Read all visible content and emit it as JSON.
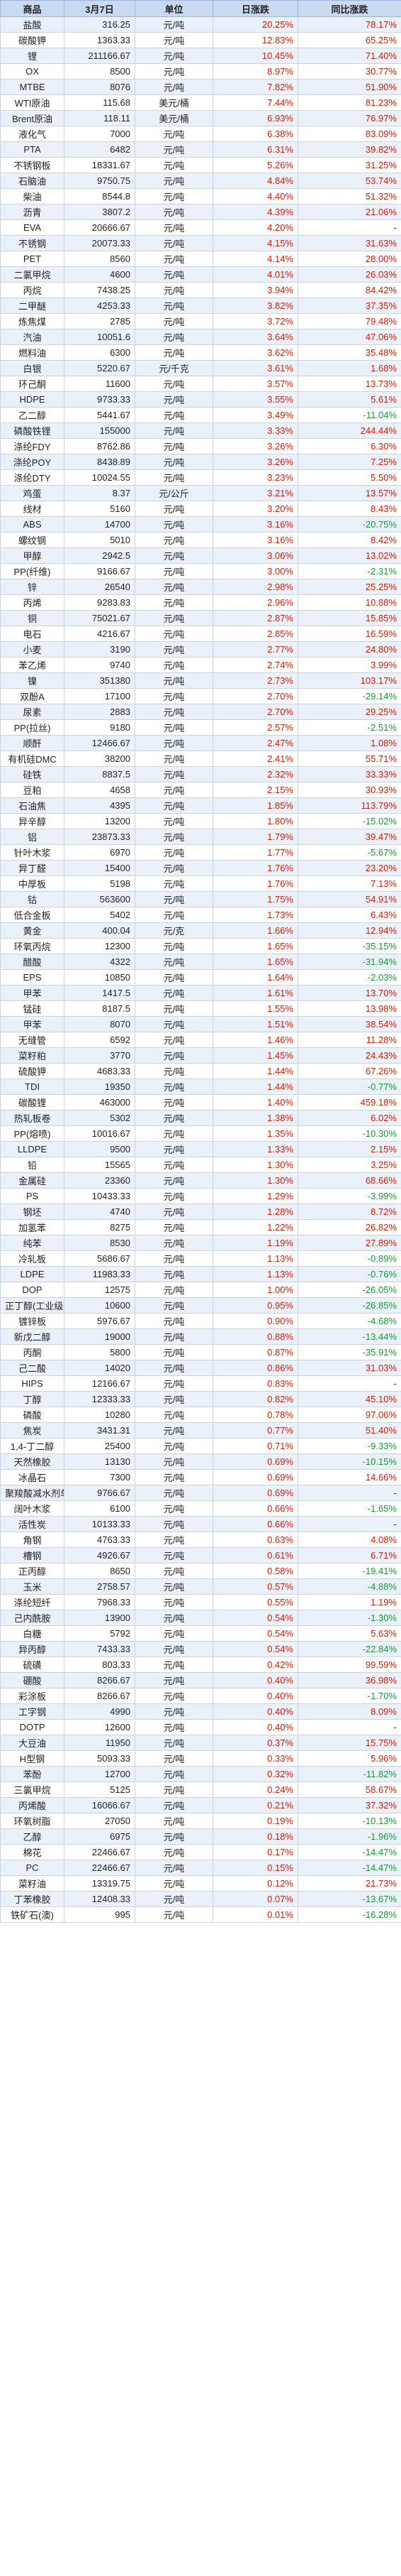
{
  "colors": {
    "header_bg": "#c9d9f0",
    "up": "#d81e06",
    "down": "#1a9a32"
  },
  "header": {
    "name": "商品",
    "price": "3月7日",
    "unit": "单位",
    "daily": "日涨跌",
    "yoy": "同比涨跌"
  },
  "rows": [
    {
      "name": "盐酸",
      "price": "316.25",
      "unit": "元/吨",
      "daily": "20.25%",
      "yoy": "78.17%"
    },
    {
      "name": "碳酸钾",
      "price": "1363.33",
      "unit": "元/吨",
      "daily": "12.83%",
      "yoy": "65.25%"
    },
    {
      "name": "锂",
      "price": "211166.67",
      "unit": "元/吨",
      "daily": "10.45%",
      "yoy": "71.40%"
    },
    {
      "name": "OX",
      "price": "8500",
      "unit": "元/吨",
      "daily": "8.97%",
      "yoy": "30.77%"
    },
    {
      "name": "MTBE",
      "price": "8076",
      "unit": "元/吨",
      "daily": "7.82%",
      "yoy": "51.90%"
    },
    {
      "name": "WTI原油",
      "price": "115.68",
      "unit": "美元/桶",
      "daily": "7.44%",
      "yoy": "81.23%"
    },
    {
      "name": "Brent原油",
      "price": "118.11",
      "unit": "美元/桶",
      "daily": "6.93%",
      "yoy": "76.97%"
    },
    {
      "name": "液化气",
      "price": "7000",
      "unit": "元/吨",
      "daily": "6.38%",
      "yoy": "83.09%"
    },
    {
      "name": "PTA",
      "price": "6482",
      "unit": "元/吨",
      "daily": "6.31%",
      "yoy": "39.82%"
    },
    {
      "name": "不锈钢板",
      "price": "18331.67",
      "unit": "元/吨",
      "daily": "5.26%",
      "yoy": "31.25%"
    },
    {
      "name": "石脑油",
      "price": "9750.75",
      "unit": "元/吨",
      "daily": "4.84%",
      "yoy": "53.74%"
    },
    {
      "name": "柴油",
      "price": "8544.8",
      "unit": "元/吨",
      "daily": "4.40%",
      "yoy": "51.32%"
    },
    {
      "name": "沥青",
      "price": "3807.2",
      "unit": "元/吨",
      "daily": "4.39%",
      "yoy": "21.06%"
    },
    {
      "name": "EVA",
      "price": "20666.67",
      "unit": "元/吨",
      "daily": "4.20%",
      "yoy": "-"
    },
    {
      "name": "不锈钢",
      "price": "20073.33",
      "unit": "元/吨",
      "daily": "4.15%",
      "yoy": "31.63%"
    },
    {
      "name": "PET",
      "price": "8560",
      "unit": "元/吨",
      "daily": "4.14%",
      "yoy": "28.00%"
    },
    {
      "name": "二氯甲烷",
      "price": "4600",
      "unit": "元/吨",
      "daily": "4.01%",
      "yoy": "26.03%"
    },
    {
      "name": "丙烷",
      "price": "7438.25",
      "unit": "元/吨",
      "daily": "3.94%",
      "yoy": "84.42%"
    },
    {
      "name": "二甲醚",
      "price": "4253.33",
      "unit": "元/吨",
      "daily": "3.82%",
      "yoy": "37.35%"
    },
    {
      "name": "炼焦煤",
      "price": "2785",
      "unit": "元/吨",
      "daily": "3.72%",
      "yoy": "79.48%"
    },
    {
      "name": "汽油",
      "price": "10051.6",
      "unit": "元/吨",
      "daily": "3.64%",
      "yoy": "47.06%"
    },
    {
      "name": "燃料油",
      "price": "6300",
      "unit": "元/吨",
      "daily": "3.62%",
      "yoy": "35.48%"
    },
    {
      "name": "白银",
      "price": "5220.67",
      "unit": "元/千克",
      "daily": "3.61%",
      "yoy": "1.68%"
    },
    {
      "name": "环己酮",
      "price": "11600",
      "unit": "元/吨",
      "daily": "3.57%",
      "yoy": "13.73%"
    },
    {
      "name": "HDPE",
      "price": "9733.33",
      "unit": "元/吨",
      "daily": "3.55%",
      "yoy": "5.61%"
    },
    {
      "name": "乙二醇",
      "price": "5441.67",
      "unit": "元/吨",
      "daily": "3.49%",
      "yoy": "-11.04%"
    },
    {
      "name": "磷酸铁锂",
      "price": "155000",
      "unit": "元/吨",
      "daily": "3.33%",
      "yoy": "244.44%"
    },
    {
      "name": "涤纶FDY",
      "price": "8762.86",
      "unit": "元/吨",
      "daily": "3.26%",
      "yoy": "6.30%"
    },
    {
      "name": "涤纶POY",
      "price": "8438.89",
      "unit": "元/吨",
      "daily": "3.26%",
      "yoy": "7.25%"
    },
    {
      "name": "涤纶DTY",
      "price": "10024.55",
      "unit": "元/吨",
      "daily": "3.23%",
      "yoy": "5.50%"
    },
    {
      "name": "鸡蛋",
      "price": "8.37",
      "unit": "元/公斤",
      "daily": "3.21%",
      "yoy": "13.57%"
    },
    {
      "name": "线材",
      "price": "5160",
      "unit": "元/吨",
      "daily": "3.20%",
      "yoy": "8.43%"
    },
    {
      "name": "ABS",
      "price": "14700",
      "unit": "元/吨",
      "daily": "3.16%",
      "yoy": "-20.75%"
    },
    {
      "name": "螺纹钢",
      "price": "5010",
      "unit": "元/吨",
      "daily": "3.16%",
      "yoy": "8.42%"
    },
    {
      "name": "甲醇",
      "price": "2942.5",
      "unit": "元/吨",
      "daily": "3.06%",
      "yoy": "13.02%"
    },
    {
      "name": "PP(纤维)",
      "price": "9166.67",
      "unit": "元/吨",
      "daily": "3.00%",
      "yoy": "-2.31%"
    },
    {
      "name": "锌",
      "price": "26540",
      "unit": "元/吨",
      "daily": "2.98%",
      "yoy": "25.25%"
    },
    {
      "name": "丙烯",
      "price": "9283.83",
      "unit": "元/吨",
      "daily": "2.96%",
      "yoy": "10.88%"
    },
    {
      "name": "铜",
      "price": "75021.67",
      "unit": "元/吨",
      "daily": "2.87%",
      "yoy": "15.85%"
    },
    {
      "name": "电石",
      "price": "4216.67",
      "unit": "元/吨",
      "daily": "2.85%",
      "yoy": "16.59%"
    },
    {
      "name": "小麦",
      "price": "3190",
      "unit": "元/吨",
      "daily": "2.77%",
      "yoy": "24.80%"
    },
    {
      "name": "苯乙烯",
      "price": "9740",
      "unit": "元/吨",
      "daily": "2.74%",
      "yoy": "3.99%"
    },
    {
      "name": "镍",
      "price": "351380",
      "unit": "元/吨",
      "daily": "2.73%",
      "yoy": "103.17%"
    },
    {
      "name": "双酚A",
      "price": "17100",
      "unit": "元/吨",
      "daily": "2.70%",
      "yoy": "-29.14%"
    },
    {
      "name": "尿素",
      "price": "2883",
      "unit": "元/吨",
      "daily": "2.70%",
      "yoy": "29.25%"
    },
    {
      "name": "PP(拉丝)",
      "price": "9180",
      "unit": "元/吨",
      "daily": "2.57%",
      "yoy": "-2.51%"
    },
    {
      "name": "顺酐",
      "price": "12466.67",
      "unit": "元/吨",
      "daily": "2.47%",
      "yoy": "1.08%"
    },
    {
      "name": "有机硅DMC",
      "price": "38200",
      "unit": "元/吨",
      "daily": "2.41%",
      "yoy": "55.71%"
    },
    {
      "name": "硅铁",
      "price": "8837.5",
      "unit": "元/吨",
      "daily": "2.32%",
      "yoy": "33.33%"
    },
    {
      "name": "豆粕",
      "price": "4658",
      "unit": "元/吨",
      "daily": "2.15%",
      "yoy": "30.93%"
    },
    {
      "name": "石油焦",
      "price": "4395",
      "unit": "元/吨",
      "daily": "1.85%",
      "yoy": "113.79%"
    },
    {
      "name": "异辛醇",
      "price": "13200",
      "unit": "元/吨",
      "daily": "1.80%",
      "yoy": "-15.02%"
    },
    {
      "name": "铝",
      "price": "23873.33",
      "unit": "元/吨",
      "daily": "1.79%",
      "yoy": "39.47%"
    },
    {
      "name": "针叶木浆",
      "price": "6970",
      "unit": "元/吨",
      "daily": "1.77%",
      "yoy": "-5.67%"
    },
    {
      "name": "异丁醛",
      "price": "15400",
      "unit": "元/吨",
      "daily": "1.76%",
      "yoy": "23.20%"
    },
    {
      "name": "中厚板",
      "price": "5198",
      "unit": "元/吨",
      "daily": "1.76%",
      "yoy": "7.13%"
    },
    {
      "name": "钴",
      "price": "563600",
      "unit": "元/吨",
      "daily": "1.75%",
      "yoy": "54.91%"
    },
    {
      "name": "低合金板",
      "price": "5402",
      "unit": "元/吨",
      "daily": "1.73%",
      "yoy": "6.43%"
    },
    {
      "name": "黄金",
      "price": "400.04",
      "unit": "元/克",
      "daily": "1.66%",
      "yoy": "12.94%"
    },
    {
      "name": "环氧丙烷",
      "price": "12300",
      "unit": "元/吨",
      "daily": "1.65%",
      "yoy": "-35.15%"
    },
    {
      "name": "醋酸",
      "price": "4322",
      "unit": "元/吨",
      "daily": "1.65%",
      "yoy": "-31.94%"
    },
    {
      "name": "EPS",
      "price": "10850",
      "unit": "元/吨",
      "daily": "1.64%",
      "yoy": "-2.03%"
    },
    {
      "name": "甲苯",
      "price": "1417.5",
      "unit": "元/吨",
      "daily": "1.61%",
      "yoy": "13.70%"
    },
    {
      "name": "锰硅",
      "price": "8187.5",
      "unit": "元/吨",
      "daily": "1.55%",
      "yoy": "13.98%"
    },
    {
      "name": "甲苯",
      "price": "8070",
      "unit": "元/吨",
      "daily": "1.51%",
      "yoy": "38.54%"
    },
    {
      "name": "无缝管",
      "price": "6592",
      "unit": "元/吨",
      "daily": "1.46%",
      "yoy": "11.28%"
    },
    {
      "name": "菜籽粕",
      "price": "3770",
      "unit": "元/吨",
      "daily": "1.45%",
      "yoy": "24.43%"
    },
    {
      "name": "硫酸钾",
      "price": "4683.33",
      "unit": "元/吨",
      "daily": "1.44%",
      "yoy": "67.26%"
    },
    {
      "name": "TDI",
      "price": "19350",
      "unit": "元/吨",
      "daily": "1.44%",
      "yoy": "-0.77%"
    },
    {
      "name": "碳酸锂",
      "price": "463000",
      "unit": "元/吨",
      "daily": "1.40%",
      "yoy": "459.18%"
    },
    {
      "name": "热轧板卷",
      "price": "5302",
      "unit": "元/吨",
      "daily": "1.38%",
      "yoy": "6.02%"
    },
    {
      "name": "PP(熔喷)",
      "price": "10016.67",
      "unit": "元/吨",
      "daily": "1.35%",
      "yoy": "-10.30%"
    },
    {
      "name": "LLDPE",
      "price": "9500",
      "unit": "元/吨",
      "daily": "1.33%",
      "yoy": "2.15%"
    },
    {
      "name": "铅",
      "price": "15565",
      "unit": "元/吨",
      "daily": "1.30%",
      "yoy": "3.25%"
    },
    {
      "name": "金属硅",
      "price": "23360",
      "unit": "元/吨",
      "daily": "1.30%",
      "yoy": "68.66%"
    },
    {
      "name": "PS",
      "price": "10433.33",
      "unit": "元/吨",
      "daily": "1.29%",
      "yoy": "-3.99%"
    },
    {
      "name": "钢坯",
      "price": "4740",
      "unit": "元/吨",
      "daily": "1.28%",
      "yoy": "8.72%"
    },
    {
      "name": "加氢苯",
      "price": "8275",
      "unit": "元/吨",
      "daily": "1.22%",
      "yoy": "26.82%"
    },
    {
      "name": "纯苯",
      "price": "8530",
      "unit": "元/吨",
      "daily": "1.19%",
      "yoy": "27.89%"
    },
    {
      "name": "冷轧板",
      "price": "5686.67",
      "unit": "元/吨",
      "daily": "1.13%",
      "yoy": "-0.89%"
    },
    {
      "name": "LDPE",
      "price": "11983.33",
      "unit": "元/吨",
      "daily": "1.13%",
      "yoy": "-0.76%"
    },
    {
      "name": "DOP",
      "price": "12575",
      "unit": "元/吨",
      "daily": "1.00%",
      "yoy": "-26.05%"
    },
    {
      "name": "正丁醇(工业级)",
      "price": "10600",
      "unit": "元/吨",
      "daily": "0.95%",
      "yoy": "-26.85%"
    },
    {
      "name": "镀锌板",
      "price": "5976.67",
      "unit": "元/吨",
      "daily": "0.90%",
      "yoy": "-4.68%"
    },
    {
      "name": "新戊二醇",
      "price": "19000",
      "unit": "元/吨",
      "daily": "0.88%",
      "yoy": "-13.44%"
    },
    {
      "name": "丙酮",
      "price": "5800",
      "unit": "元/吨",
      "daily": "0.87%",
      "yoy": "-35.91%"
    },
    {
      "name": "己二酸",
      "price": "14020",
      "unit": "元/吨",
      "daily": "0.86%",
      "yoy": "31.03%"
    },
    {
      "name": "HIPS",
      "price": "12166.67",
      "unit": "元/吨",
      "daily": "0.83%",
      "yoy": "-"
    },
    {
      "name": "丁醇",
      "price": "12333.33",
      "unit": "元/吨",
      "daily": "0.82%",
      "yoy": "45.10%"
    },
    {
      "name": "磷酸",
      "price": "10280",
      "unit": "元/吨",
      "daily": "0.78%",
      "yoy": "97.06%"
    },
    {
      "name": "焦炭",
      "price": "3431.31",
      "unit": "元/吨",
      "daily": "0.77%",
      "yoy": "51.40%"
    },
    {
      "name": "1,4-丁二醇",
      "price": "25400",
      "unit": "元/吨",
      "daily": "0.71%",
      "yoy": "-9.33%"
    },
    {
      "name": "天然橡胶",
      "price": "13130",
      "unit": "元/吨",
      "daily": "0.69%",
      "yoy": "-10.15%"
    },
    {
      "name": "冰晶石",
      "price": "7300",
      "unit": "元/吨",
      "daily": "0.69%",
      "yoy": "14.66%"
    },
    {
      "name": "聚羧酸减水剂单体",
      "price": "9766.67",
      "unit": "元/吨",
      "daily": "0.69%",
      "yoy": "-"
    },
    {
      "name": "阔叶木浆",
      "price": "6100",
      "unit": "元/吨",
      "daily": "0.66%",
      "yoy": "-1.65%"
    },
    {
      "name": "活性炭",
      "price": "10133.33",
      "unit": "元/吨",
      "daily": "0.66%",
      "yoy": "-"
    },
    {
      "name": "角钢",
      "price": "4763.33",
      "unit": "元/吨",
      "daily": "0.63%",
      "yoy": "4.08%"
    },
    {
      "name": "槽钢",
      "price": "4926.67",
      "unit": "元/吨",
      "daily": "0.61%",
      "yoy": "6.71%"
    },
    {
      "name": "正丙醇",
      "price": "8650",
      "unit": "元/吨",
      "daily": "0.58%",
      "yoy": "-19.41%"
    },
    {
      "name": "玉米",
      "price": "2758.57",
      "unit": "元/吨",
      "daily": "0.57%",
      "yoy": "-4.88%"
    },
    {
      "name": "涤纶短纤",
      "price": "7968.33",
      "unit": "元/吨",
      "daily": "0.55%",
      "yoy": "1.19%"
    },
    {
      "name": "己内酰胺",
      "price": "13900",
      "unit": "元/吨",
      "daily": "0.54%",
      "yoy": "-1.30%"
    },
    {
      "name": "白糖",
      "price": "5792",
      "unit": "元/吨",
      "daily": "0.54%",
      "yoy": "5.63%"
    },
    {
      "name": "异丙醇",
      "price": "7433.33",
      "unit": "元/吨",
      "daily": "0.54%",
      "yoy": "-22.84%"
    },
    {
      "name": "硫磺",
      "price": "803.33",
      "unit": "元/吨",
      "daily": "0.42%",
      "yoy": "99.59%"
    },
    {
      "name": "硼酸",
      "price": "8266.67",
      "unit": "元/吨",
      "daily": "0.40%",
      "yoy": "36.98%"
    },
    {
      "name": "彩涂板",
      "price": "8266.67",
      "unit": "元/吨",
      "daily": "0.40%",
      "yoy": "-1.70%"
    },
    {
      "name": "工字钢",
      "price": "4990",
      "unit": "元/吨",
      "daily": "0.40%",
      "yoy": "8.09%"
    },
    {
      "name": "DOTP",
      "price": "12600",
      "unit": "元/吨",
      "daily": "0.40%",
      "yoy": "-"
    },
    {
      "name": "大豆油",
      "price": "11950",
      "unit": "元/吨",
      "daily": "0.37%",
      "yoy": "15.75%"
    },
    {
      "name": "H型钢",
      "price": "5093.33",
      "unit": "元/吨",
      "daily": "0.33%",
      "yoy": "5.96%"
    },
    {
      "name": "苯酚",
      "price": "12700",
      "unit": "元/吨",
      "daily": "0.32%",
      "yoy": "-11.82%"
    },
    {
      "name": "三氯甲烷",
      "price": "5125",
      "unit": "元/吨",
      "daily": "0.24%",
      "yoy": "58.67%"
    },
    {
      "name": "丙烯酸",
      "price": "16066.67",
      "unit": "元/吨",
      "daily": "0.21%",
      "yoy": "37.32%"
    },
    {
      "name": "环氧树脂",
      "price": "27050",
      "unit": "元/吨",
      "daily": "0.19%",
      "yoy": "-10.13%"
    },
    {
      "name": "乙醇",
      "price": "6975",
      "unit": "元/吨",
      "daily": "0.18%",
      "yoy": "-1.96%"
    },
    {
      "name": "棉花",
      "price": "22466.67",
      "unit": "元/吨",
      "daily": "0.17%",
      "yoy": "-14.47%"
    },
    {
      "name": "PC",
      "price": "22466.67",
      "unit": "元/吨",
      "daily": "0.15%",
      "yoy": "-14.47%"
    },
    {
      "name": "菜籽油",
      "price": "13319.75",
      "unit": "元/吨",
      "daily": "0.12%",
      "yoy": "21.73%"
    },
    {
      "name": "丁苯橡胶",
      "price": "12408.33",
      "unit": "元/吨",
      "daily": "0.07%",
      "yoy": "-13.67%"
    },
    {
      "name": "铁矿石(澳)",
      "price": "995",
      "unit": "元/吨",
      "daily": "0.01%",
      "yoy": "-16.28%"
    }
  ]
}
